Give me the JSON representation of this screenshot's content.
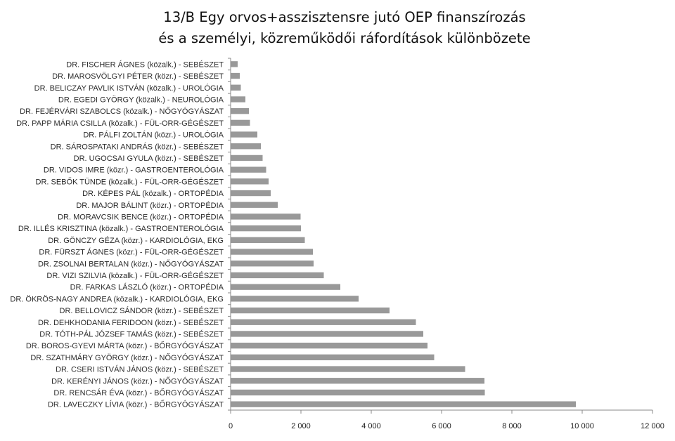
{
  "header": {
    "line1": "13/B   Egy orvos+asszisztensre jutó OEP finanszírozás",
    "line2": "és a személyi, közreműködői ráfordítások különbözete"
  },
  "chart_data": {
    "type": "bar",
    "orientation": "horizontal",
    "categories": [
      "DR. FISCHER ÁGNES (közalk.) - SEBÉSZET",
      "DR. MAROSVÖLGYI PÉTER  (közr.) - SEBÉSZET",
      "DR. BELICZAY PAVLIK ISTVÁN (közalk.) - UROLÓGIA",
      "DR. EGEDI GYÖRGY (közalk.) - NEUROLÓGIA",
      "DR. FEJÉRVÁRI SZABOLCS (közalk.) - NŐGYÓGYÁSZAT",
      "DR. PAPP MÁRIA CSILLA (közalk.) - FÜL-ORR-GÉGÉSZET",
      "DR. PÁLFI ZOLTÁN (közr.) - UROLÓGIA",
      "DR. SÁROSPATAKI ANDRÁS (közr.) - SEBÉSZET",
      "DR. UGOCSAI GYULA (közr.) - SEBÉSZET",
      "DR. VIDOS IMRE (közr.) - GASTROENTEROLÓGIA",
      "DR. SEBŐK TÜNDE (közalk.) - FÜL-ORR-GÉGÉSZET",
      "DR. KÉPES PÁL (közalk.) - ORTOPÉDIA",
      "DR. MAJOR BÁLINT (közr.) - ORTOPÉDIA",
      "DR. MORAVCSIK BENCE (közr.) - ORTOPÉDIA",
      "DR. ILLÉS KRISZTINA (közalk.) - GASTROENTEROLÓGIA",
      "DR. GÖNCZY GÉZA (közr.) - KARDIOLÓGIA, EKG",
      "DR. FÜRSZT ÁGNES (közr.) - FÜL-ORR-GÉGÉSZET",
      "DR. ZSOLNAI BERTALAN (közr.) - NŐGYÓGYÁSZAT",
      "DR. VIZI SZILVIA (közalk.) - FÜL-ORR-GÉGÉSZET",
      "DR. FARKAS LÁSZLÓ  (közr.) - ORTOPÉDIA",
      "DR. ÖKRÖS-NAGY ANDREA (közalk.) - KARDIOLÓGIA, EKG",
      "DR. BELLOVICZ SÁNDOR (közr.) - SEBÉSZET",
      "DR. DEHKHODANIA FERIDOON (közr.) - SEBÉSZET",
      "DR. TÓTH-PÁL JÓZSEF TAMÁS (közr.) - SEBÉSZET",
      "DR. BOROS-GYEVI MÁRTA (közr.) - BŐRGYÓGYÁSZAT",
      "DR. SZATHMÁRY GYÖRGY (közr.) - NŐGYÓGYÁSZAT",
      "DR. CSERI ISTVÁN JÁNOS (közr.) - SEBÉSZET",
      "DR. KERÉNYI JÁNOS (közr.) - NŐGYÓGYÁSZAT",
      "DR. RENCSÁR ÉVA (közr.) - BŐRGYÓGYÁSZAT",
      "DR. LAVECZKY LÍVIA (közr.) - BŐRGYÓGYÁSZAT"
    ],
    "values": [
      200,
      260,
      290,
      420,
      520,
      550,
      760,
      860,
      910,
      1010,
      1080,
      1140,
      1340,
      1990,
      2000,
      2110,
      2340,
      2360,
      2650,
      3120,
      3640,
      4520,
      5270,
      5480,
      5600,
      5790,
      6670,
      7220,
      7230,
      9820
    ],
    "xlim": [
      0,
      12000
    ],
    "xticks": [
      0,
      2000,
      4000,
      6000,
      8000,
      10000,
      12000
    ],
    "xtick_labels": [
      "0",
      "2 000",
      "4 000",
      "6 000",
      "8 000",
      "10 000",
      "12 000"
    ],
    "bar_color": "#999999",
    "axis_color": "#888888",
    "grid": false
  }
}
